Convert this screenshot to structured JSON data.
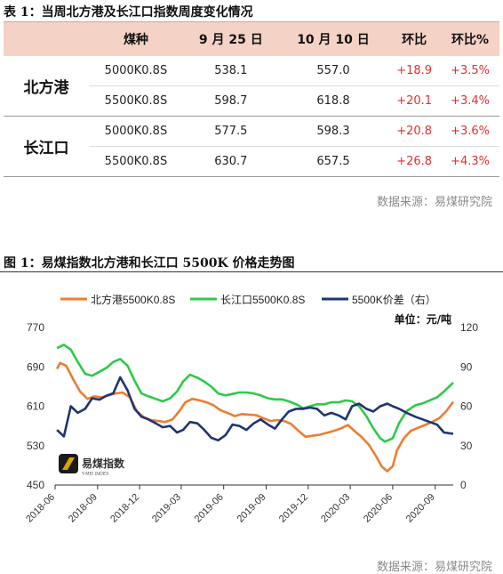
{
  "table_caption": "表 1：当周北方港及长江口指数周度变化情况",
  "table": {
    "headers": [
      "",
      "煤种",
      "9 月 25 日",
      "10 月 10 日",
      "环比",
      "环比%"
    ],
    "groups": [
      {
        "port": "北方港",
        "rows": [
          {
            "coal": "5000K0.8S",
            "sep25": "538.1",
            "oct10": "557.0",
            "chg": "+18.9",
            "pct": "+3.5%"
          },
          {
            "coal": "5500K0.8S",
            "sep25": "598.7",
            "oct10": "618.8",
            "chg": "+20.1",
            "pct": "+3.4%"
          }
        ]
      },
      {
        "port": "长江口",
        "rows": [
          {
            "coal": "5000K0.8S",
            "sep25": "577.5",
            "oct10": "598.3",
            "chg": "+20.8",
            "pct": "+3.6%"
          },
          {
            "coal": "5500K0.8S",
            "sep25": "630.7",
            "oct10": "657.5",
            "chg": "+26.8",
            "pct": "+4.3%"
          }
        ]
      }
    ]
  },
  "source_table": "数据来源：易煤研究院",
  "figure_caption": "图 1：易煤指数北方港和长江口 5500K 价格走势图",
  "source_chart": "数据来源：易煤研究院",
  "logo_text": "易煤指数",
  "logo_sub": "Y-MEI INDEX",
  "colors": {
    "north": "#ed7d31",
    "yangtze": "#2ec94a",
    "spread": "#1f3473",
    "up": "#e03030",
    "header_bg": "#f4d2c5"
  },
  "chart_data": {
    "type": "line",
    "unit_label": "单位：元/吨",
    "x_ticks": [
      "2018-06",
      "2018-09",
      "2018-12",
      "2019-03",
      "2019-06",
      "2019-09",
      "2019-12",
      "2020-03",
      "2020-06",
      "2020-09"
    ],
    "x_range": [
      "2018-06-01",
      "2020-10-10"
    ],
    "y_left": {
      "min": 450,
      "max": 770,
      "ticks": [
        450,
        530,
        610,
        690,
        770
      ]
    },
    "y_right": {
      "min": 0,
      "max": 120,
      "ticks": [
        0,
        30,
        60,
        90,
        120
      ]
    },
    "series": [
      {
        "name": "北方港5500K0.8S",
        "axis": "left",
        "color": "#ed7d31",
        "points": [
          [
            "2018-06-05",
            686
          ],
          [
            "2018-06-12",
            698
          ],
          [
            "2018-06-25",
            692
          ],
          [
            "2018-07-10",
            665
          ],
          [
            "2018-07-25",
            640
          ],
          [
            "2018-08-10",
            625
          ],
          [
            "2018-08-25",
            630
          ],
          [
            "2018-09-10",
            628
          ],
          [
            "2018-09-25",
            632
          ],
          [
            "2018-10-10",
            636
          ],
          [
            "2018-10-25",
            638
          ],
          [
            "2018-11-10",
            628
          ],
          [
            "2018-11-25",
            600
          ],
          [
            "2018-12-10",
            588
          ],
          [
            "2018-12-25",
            582
          ],
          [
            "2019-01-10",
            580
          ],
          [
            "2019-01-25",
            578
          ],
          [
            "2019-02-10",
            583
          ],
          [
            "2019-02-25",
            600
          ],
          [
            "2019-03-10",
            618
          ],
          [
            "2019-03-25",
            625
          ],
          [
            "2019-04-10",
            622
          ],
          [
            "2019-04-25",
            618
          ],
          [
            "2019-05-10",
            612
          ],
          [
            "2019-05-25",
            602
          ],
          [
            "2019-06-10",
            596
          ],
          [
            "2019-06-25",
            590
          ],
          [
            "2019-07-10",
            594
          ],
          [
            "2019-07-25",
            593
          ],
          [
            "2019-08-10",
            592
          ],
          [
            "2019-08-25",
            586
          ],
          [
            "2019-09-10",
            580
          ],
          [
            "2019-09-25",
            582
          ],
          [
            "2019-10-10",
            580
          ],
          [
            "2019-10-25",
            574
          ],
          [
            "2019-11-10",
            560
          ],
          [
            "2019-11-25",
            548
          ],
          [
            "2019-12-10",
            550
          ],
          [
            "2019-12-25",
            552
          ],
          [
            "2020-01-10",
            556
          ],
          [
            "2020-01-25",
            560
          ],
          [
            "2020-02-10",
            565
          ],
          [
            "2020-02-25",
            572
          ],
          [
            "2020-03-10",
            560
          ],
          [
            "2020-03-25",
            548
          ],
          [
            "2020-04-10",
            532
          ],
          [
            "2020-04-25",
            510
          ],
          [
            "2020-05-08",
            488
          ],
          [
            "2020-05-20",
            478
          ],
          [
            "2020-06-01",
            488
          ],
          [
            "2020-06-10",
            520
          ],
          [
            "2020-06-25",
            545
          ],
          [
            "2020-07-10",
            560
          ],
          [
            "2020-07-25",
            566
          ],
          [
            "2020-08-10",
            572
          ],
          [
            "2020-08-25",
            578
          ],
          [
            "2020-09-10",
            586
          ],
          [
            "2020-09-25",
            600
          ],
          [
            "2020-10-10",
            619
          ]
        ]
      },
      {
        "name": "长江口5500K0.8S",
        "axis": "left",
        "color": "#2ec94a",
        "points": [
          [
            "2018-06-05",
            728
          ],
          [
            "2018-06-20",
            735
          ],
          [
            "2018-07-05",
            725
          ],
          [
            "2018-07-20",
            700
          ],
          [
            "2018-08-05",
            676
          ],
          [
            "2018-08-20",
            672
          ],
          [
            "2018-09-05",
            680
          ],
          [
            "2018-09-20",
            688
          ],
          [
            "2018-10-05",
            700
          ],
          [
            "2018-10-20",
            706
          ],
          [
            "2018-11-05",
            692
          ],
          [
            "2018-11-20",
            662
          ],
          [
            "2018-12-05",
            636
          ],
          [
            "2018-12-20",
            630
          ],
          [
            "2019-01-05",
            625
          ],
          [
            "2019-01-20",
            620
          ],
          [
            "2019-02-05",
            626
          ],
          [
            "2019-02-20",
            640
          ],
          [
            "2019-03-05",
            660
          ],
          [
            "2019-03-20",
            674
          ],
          [
            "2019-04-05",
            668
          ],
          [
            "2019-04-20",
            660
          ],
          [
            "2019-05-05",
            650
          ],
          [
            "2019-05-20",
            636
          ],
          [
            "2019-06-05",
            632
          ],
          [
            "2019-06-20",
            635
          ],
          [
            "2019-07-05",
            638
          ],
          [
            "2019-07-20",
            638
          ],
          [
            "2019-08-05",
            636
          ],
          [
            "2019-08-20",
            632
          ],
          [
            "2019-09-05",
            626
          ],
          [
            "2019-09-20",
            624
          ],
          [
            "2019-10-05",
            624
          ],
          [
            "2019-10-20",
            620
          ],
          [
            "2019-11-05",
            614
          ],
          [
            "2019-11-20",
            606
          ],
          [
            "2019-12-05",
            610
          ],
          [
            "2019-12-20",
            614
          ],
          [
            "2020-01-05",
            614
          ],
          [
            "2020-01-20",
            618
          ],
          [
            "2020-02-05",
            618
          ],
          [
            "2020-02-20",
            622
          ],
          [
            "2020-03-05",
            620
          ],
          [
            "2020-03-20",
            610
          ],
          [
            "2020-04-05",
            590
          ],
          [
            "2020-04-20",
            565
          ],
          [
            "2020-05-05",
            545
          ],
          [
            "2020-05-15",
            538
          ],
          [
            "2020-06-01",
            545
          ],
          [
            "2020-06-15",
            576
          ],
          [
            "2020-07-01",
            600
          ],
          [
            "2020-07-20",
            612
          ],
          [
            "2020-08-05",
            616
          ],
          [
            "2020-08-20",
            622
          ],
          [
            "2020-09-05",
            628
          ],
          [
            "2020-09-20",
            640
          ],
          [
            "2020-10-10",
            658
          ]
        ]
      },
      {
        "name": "5500K价差（右）",
        "axis": "right",
        "color": "#1f3473",
        "points": [
          [
            "2018-06-05",
            42
          ],
          [
            "2018-06-20",
            37
          ],
          [
            "2018-07-05",
            60
          ],
          [
            "2018-07-20",
            55
          ],
          [
            "2018-08-05",
            58
          ],
          [
            "2018-08-20",
            66
          ],
          [
            "2018-09-05",
            65
          ],
          [
            "2018-09-20",
            68
          ],
          [
            "2018-10-05",
            70
          ],
          [
            "2018-10-20",
            82
          ],
          [
            "2018-11-05",
            72
          ],
          [
            "2018-11-20",
            58
          ],
          [
            "2018-12-05",
            52
          ],
          [
            "2018-12-20",
            50
          ],
          [
            "2019-01-05",
            47
          ],
          [
            "2019-01-20",
            44
          ],
          [
            "2019-02-05",
            45
          ],
          [
            "2019-02-20",
            40
          ],
          [
            "2019-03-05",
            42
          ],
          [
            "2019-03-20",
            48
          ],
          [
            "2019-04-05",
            47
          ],
          [
            "2019-04-20",
            42
          ],
          [
            "2019-05-05",
            36
          ],
          [
            "2019-05-20",
            34
          ],
          [
            "2019-06-05",
            38
          ],
          [
            "2019-06-20",
            46
          ],
          [
            "2019-07-05",
            45
          ],
          [
            "2019-07-20",
            42
          ],
          [
            "2019-08-05",
            47
          ],
          [
            "2019-08-20",
            50
          ],
          [
            "2019-09-05",
            46
          ],
          [
            "2019-09-20",
            43
          ],
          [
            "2019-10-05",
            50
          ],
          [
            "2019-10-20",
            56
          ],
          [
            "2019-11-05",
            58
          ],
          [
            "2019-11-20",
            58
          ],
          [
            "2019-12-05",
            59
          ],
          [
            "2019-12-20",
            58
          ],
          [
            "2020-01-05",
            53
          ],
          [
            "2020-01-20",
            55
          ],
          [
            "2020-02-05",
            53
          ],
          [
            "2020-02-20",
            50
          ],
          [
            "2020-03-05",
            60
          ],
          [
            "2020-03-20",
            62
          ],
          [
            "2020-04-05",
            58
          ],
          [
            "2020-04-20",
            56
          ],
          [
            "2020-05-05",
            60
          ],
          [
            "2020-05-20",
            62
          ],
          [
            "2020-06-01",
            60
          ],
          [
            "2020-06-15",
            58
          ],
          [
            "2020-07-01",
            55
          ],
          [
            "2020-07-20",
            52
          ],
          [
            "2020-08-05",
            50
          ],
          [
            "2020-08-20",
            48
          ],
          [
            "2020-09-05",
            46
          ],
          [
            "2020-09-20",
            40
          ],
          [
            "2020-10-10",
            39
          ]
        ]
      }
    ]
  }
}
